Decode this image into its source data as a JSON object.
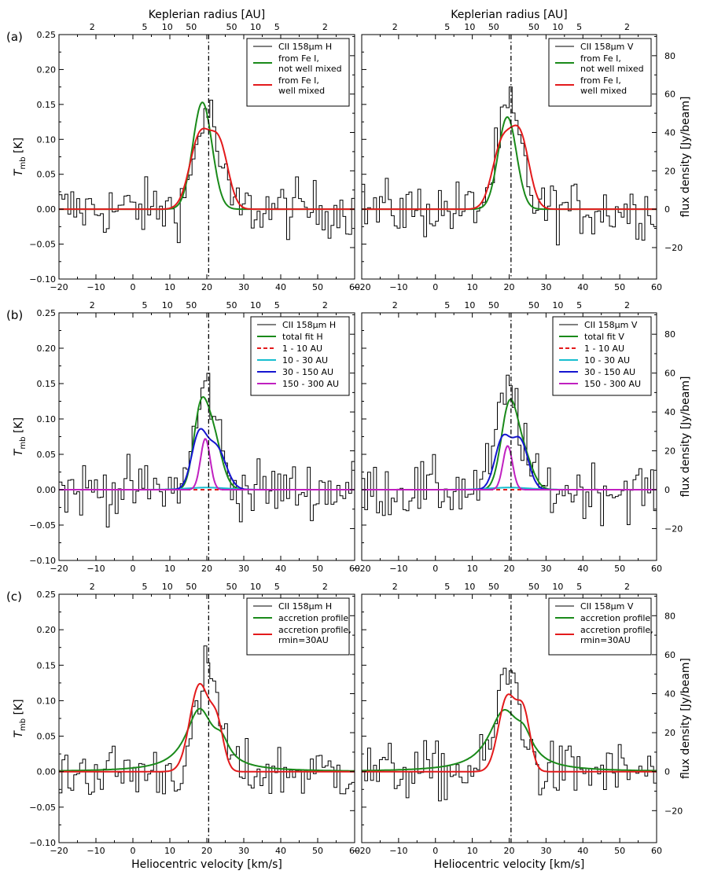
{
  "figure": {
    "panel_labels": [
      "(a)",
      "(b)",
      "(c)"
    ],
    "top_axis_title": "Keplerian radius [AU]",
    "x_axis_title": "Heliocentric velocity [km/s]",
    "left_axis_title": "T_mb [K]",
    "right_axis_title": "flux density [Jy/beam]",
    "vsys_line_kms": 20.5,
    "top_axis_ticks": [
      {
        "label": "2",
        "v": -11
      },
      {
        "label": "5",
        "v": 3.2
      },
      {
        "label": "10",
        "v": 9.3
      },
      {
        "label": "50",
        "v": 15.8
      },
      {
        "label": "50",
        "v": 26.7
      },
      {
        "label": "10",
        "v": 33.2
      },
      {
        "label": "5",
        "v": 39
      },
      {
        "label": "2",
        "v": 52
      }
    ],
    "x_tick_labels": [
      "−20",
      "−10",
      "0",
      "10",
      "20",
      "30",
      "40",
      "50",
      "60"
    ],
    "y_tick_labels": [
      "−0.10",
      "−0.05",
      "0.00",
      "0.05",
      "0.10",
      "0.15",
      "0.20",
      "0.25"
    ],
    "right_tick_labels": [
      "−20",
      "0",
      "20",
      "40",
      "60",
      "80"
    ]
  },
  "colors": {
    "observed": "#000000",
    "green": "#1a8a1a",
    "red": "#e31a1c",
    "cyan": "#17becf",
    "blue": "#1515d0",
    "magenta": "#c020c0"
  },
  "chart_data": [
    {
      "id": "a-H",
      "row": 0,
      "col": 0,
      "type": "line",
      "xlim": [
        -20,
        60
      ],
      "ylim": [
        -0.1,
        0.25
      ],
      "right_ylim_jy": [
        -36.4,
        91.0
      ],
      "series": [
        {
          "name": "CII 158μm H",
          "kind": "observed",
          "color": "observed",
          "peak": 0.14,
          "center": 20,
          "width": 3.0
        },
        {
          "name": "from Fe I, not well mixed",
          "kind": "model",
          "color": "green",
          "components": [
            [
              0.153,
              18.8,
              2.6
            ]
          ]
        },
        {
          "name": "from Fe I, well mixed",
          "kind": "model",
          "color": "red",
          "components": [
            [
              0.105,
              18.2,
              2.8
            ],
            [
              0.085,
              23.5,
              2.4
            ]
          ]
        }
      ],
      "legend": [
        {
          "label": "CII 158μm H",
          "color": "observed",
          "dash": false
        },
        {
          "label": "from Fe I,",
          "label2": "not well mixed",
          "color": "green",
          "dash": false
        },
        {
          "label": "from Fe I,",
          "label2": "well mixed",
          "color": "red",
          "dash": false
        }
      ]
    },
    {
      "id": "a-V",
      "row": 0,
      "col": 1,
      "type": "line",
      "xlim": [
        -20,
        60
      ],
      "ylim": [
        -0.1,
        0.25
      ],
      "right_ylim_jy": [
        -36.4,
        91.0
      ],
      "series": [
        {
          "name": "CII 158μm V",
          "kind": "observed",
          "color": "observed",
          "peak": 0.14,
          "center": 20,
          "width": 3.2
        },
        {
          "name": "from Fe I, not well mixed",
          "kind": "model",
          "color": "green",
          "components": [
            [
              0.132,
              19.5,
              2.5
            ]
          ]
        },
        {
          "name": "from Fe I, well mixed",
          "kind": "model",
          "color": "red",
          "components": [
            [
              0.09,
              18.0,
              2.6
            ],
            [
              0.1,
              23.0,
              2.5
            ]
          ]
        }
      ],
      "legend": [
        {
          "label": "CII 158μm V",
          "color": "observed",
          "dash": false
        },
        {
          "label": "from Fe I,",
          "label2": "not well mixed",
          "color": "green",
          "dash": false
        },
        {
          "label": "from Fe I,",
          "label2": "well mixed",
          "color": "red",
          "dash": false
        }
      ]
    },
    {
      "id": "b-H",
      "row": 1,
      "col": 0,
      "type": "line",
      "xlim": [
        -20,
        60
      ],
      "ylim": [
        -0.1,
        0.25
      ],
      "right_ylim_jy": [
        -36.4,
        91.0
      ],
      "series": [
        {
          "name": "CII 158μm H",
          "kind": "observed",
          "color": "observed",
          "peak": 0.145,
          "center": 20,
          "width": 3.0
        },
        {
          "name": "total fit H",
          "kind": "model",
          "color": "green",
          "components": [
            [
              0.075,
              18.0,
              1.8
            ],
            [
              0.09,
              21.0,
              2.6
            ]
          ]
        },
        {
          "name": "1 - 10 AU",
          "kind": "model",
          "color": "red",
          "dash": true,
          "components": [
            [
              0.0,
              20.0,
              5
            ]
          ]
        },
        {
          "name": "10 - 30 AU",
          "kind": "model",
          "color": "cyan",
          "components": [
            [
              0.003,
              20.0,
              5.5
            ]
          ]
        },
        {
          "name": "30 - 150 AU",
          "kind": "model",
          "color": "blue",
          "components": [
            [
              0.072,
              17.8,
              2.0
            ],
            [
              0.06,
              22.5,
              2.6
            ]
          ]
        },
        {
          "name": "150 - 300 AU",
          "kind": "model",
          "color": "magenta",
          "components": [
            [
              0.072,
              19.6,
              1.3
            ]
          ]
        }
      ],
      "legend": [
        {
          "label": "CII 158μm H",
          "color": "observed",
          "dash": false
        },
        {
          "label": "total fit H",
          "color": "green",
          "dash": false
        },
        {
          "label": "1 - 10 AU",
          "color": "red",
          "dash": true
        },
        {
          "label": "10 - 30 AU",
          "color": "cyan",
          "dash": false
        },
        {
          "label": "30 - 150 AU",
          "color": "blue",
          "dash": false
        },
        {
          "label": "150 - 300 AU",
          "color": "magenta",
          "dash": false
        }
      ]
    },
    {
      "id": "b-V",
      "row": 1,
      "col": 1,
      "type": "line",
      "xlim": [
        -20,
        60
      ],
      "ylim": [
        -0.1,
        0.25
      ],
      "right_ylim_jy": [
        -36.4,
        91.0
      ],
      "series": [
        {
          "name": "CII 158μm V",
          "kind": "observed",
          "color": "observed",
          "peak": 0.14,
          "center": 20,
          "width": 3.2
        },
        {
          "name": "total fit V",
          "kind": "model",
          "color": "green",
          "components": [
            [
              0.115,
              20.0,
              2.2
            ],
            [
              0.045,
              24.0,
              2.4
            ]
          ]
        },
        {
          "name": "1 - 10 AU",
          "kind": "model",
          "color": "red",
          "dash": true,
          "components": [
            [
              0.0,
              20.0,
              5
            ]
          ]
        },
        {
          "name": "10 - 30 AU",
          "kind": "model",
          "color": "cyan",
          "components": [
            [
              0.003,
              20.0,
              5.5
            ]
          ]
        },
        {
          "name": "30 - 150 AU",
          "kind": "model",
          "color": "blue",
          "components": [
            [
              0.07,
              18.2,
              2.1
            ],
            [
              0.068,
              23.0,
              2.2
            ]
          ]
        },
        {
          "name": "150 - 300 AU",
          "kind": "model",
          "color": "magenta",
          "components": [
            [
              0.062,
              19.6,
              1.3
            ]
          ]
        }
      ],
      "legend": [
        {
          "label": "CII 158μm V",
          "color": "observed",
          "dash": false
        },
        {
          "label": "total fit V",
          "color": "green",
          "dash": false
        },
        {
          "label": "1 - 10 AU",
          "color": "red",
          "dash": true
        },
        {
          "label": "10 - 30 AU",
          "color": "cyan",
          "dash": false
        },
        {
          "label": "30 - 150 AU",
          "color": "blue",
          "dash": false
        },
        {
          "label": "150 - 300 AU",
          "color": "magenta",
          "dash": false
        }
      ]
    },
    {
      "id": "c-H",
      "row": 2,
      "col": 0,
      "type": "line",
      "xlim": [
        -20,
        60
      ],
      "ylim": [
        -0.1,
        0.25
      ],
      "right_ylim_jy": [
        -36.4,
        91.0
      ],
      "series": [
        {
          "name": "CII 158μm H",
          "kind": "observed",
          "color": "observed",
          "peak": 0.14,
          "center": 20.5,
          "width": 3.0
        },
        {
          "name": "accretion profile",
          "kind": "model",
          "color": "green",
          "lorentz": [
            [
              0.085,
              18.0,
              4.5
            ],
            [
              0.025,
              24.0,
              2.5
            ]
          ]
        },
        {
          "name": "accretion profile, rmin=30AU",
          "kind": "model",
          "color": "red",
          "components": [
            [
              0.122,
              18.0,
              2.6
            ],
            [
              0.06,
              22.8,
              1.8
            ]
          ]
        }
      ],
      "legend": [
        {
          "label": "CII 158μm H",
          "color": "observed",
          "dash": false
        },
        {
          "label": "accretion profile",
          "color": "green",
          "dash": false
        },
        {
          "label": "accretion profile,",
          "label2": "rmin=30AU",
          "color": "red",
          "dash": false
        }
      ]
    },
    {
      "id": "c-V",
      "row": 2,
      "col": 1,
      "type": "line",
      "xlim": [
        -20,
        60
      ],
      "ylim": [
        -0.1,
        0.25
      ],
      "right_ylim_jy": [
        -36.4,
        91.0
      ],
      "series": [
        {
          "name": "CII 158μm V",
          "kind": "observed",
          "color": "observed",
          "peak": 0.14,
          "center": 20,
          "width": 3.2
        },
        {
          "name": "accretion profile",
          "kind": "model",
          "color": "green",
          "lorentz": [
            [
              0.08,
              18.5,
              5.0
            ],
            [
              0.03,
              24.0,
              3.0
            ]
          ]
        },
        {
          "name": "accretion profile, rmin=30AU",
          "kind": "model",
          "color": "red",
          "components": [
            [
              0.105,
              19.5,
              2.4
            ],
            [
              0.075,
              24.0,
              1.8
            ]
          ]
        }
      ],
      "legend": [
        {
          "label": "CII 158μm V",
          "color": "observed",
          "dash": false
        },
        {
          "label": "accretion profile",
          "color": "green",
          "dash": false
        },
        {
          "label": "accretion profile,",
          "label2": "rmin=30AU",
          "color": "red",
          "dash": false
        }
      ]
    }
  ]
}
